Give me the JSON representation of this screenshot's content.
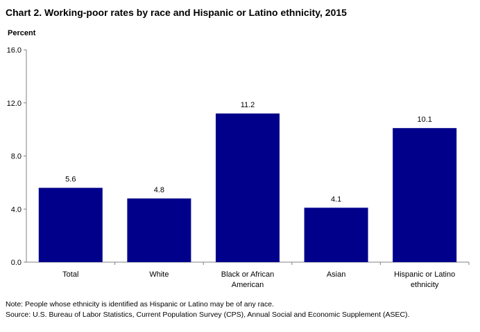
{
  "chart_data": {
    "type": "bar",
    "title": "Chart 2. Working-poor rates by race and Hispanic or Latino ethnicity, 2015",
    "ylabel": "Percent",
    "xlabel": "",
    "ylim": [
      0,
      16
    ],
    "yticks": [
      "0.0",
      "4.0",
      "8.0",
      "12.0",
      "16.0"
    ],
    "grid": false,
    "legend": "none",
    "bar_color": "#00008B",
    "categories": [
      [
        "Total"
      ],
      [
        "White"
      ],
      [
        "Black or African",
        "American"
      ],
      [
        "Asian"
      ],
      [
        "Hispanic or Latino",
        "ethnicity"
      ]
    ],
    "values": [
      5.6,
      4.8,
      11.2,
      4.1,
      10.1
    ],
    "value_labels": [
      "5.6",
      "4.8",
      "11.2",
      "4.1",
      "10.1"
    ]
  },
  "notes": {
    "note": "Note: People whose ethnicity is identified as Hispanic or Latino may be of any race.",
    "source": "Source: U.S. Bureau of Labor Statistics, Current Population Survey (CPS), Annual Social and Economic Supplement (ASEC)."
  }
}
